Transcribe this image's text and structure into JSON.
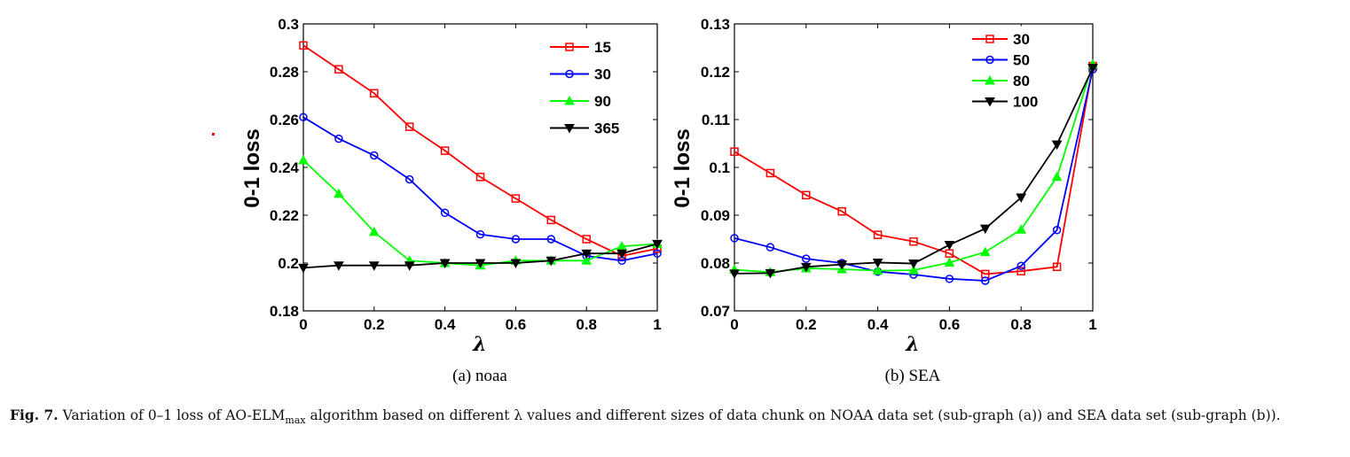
{
  "chart_data": [
    {
      "type": "line",
      "subtitle": "(a) noaa",
      "xlabel": "λ",
      "ylabel": "0-1 loss",
      "xlim": [
        0,
        1
      ],
      "ylim": [
        0.18,
        0.3
      ],
      "xticks": [
        0,
        0.2,
        0.4,
        0.6,
        0.8,
        1
      ],
      "xtick_labels": [
        "0",
        "0.2",
        "0.4",
        "0.6",
        "0.8",
        "1"
      ],
      "yticks": [
        0.18,
        0.2,
        0.22,
        0.24,
        0.26,
        0.28,
        0.3
      ],
      "ytick_labels": [
        "0.18",
        "0.2",
        "0.22",
        "0.24",
        "0.26",
        "0.28",
        "0.3"
      ],
      "legend_position": "top-right",
      "grid": false,
      "x": [
        0,
        0.1,
        0.2,
        0.3,
        0.4,
        0.5,
        0.6,
        0.7,
        0.8,
        0.9,
        1
      ],
      "series": [
        {
          "name": "15",
          "color": "#ff0000",
          "marker": "square",
          "values": [
            0.291,
            0.281,
            0.271,
            0.257,
            0.247,
            0.236,
            0.227,
            0.218,
            0.21,
            0.203,
            0.206
          ]
        },
        {
          "name": "30",
          "color": "#0000ff",
          "marker": "circle",
          "values": [
            0.261,
            0.252,
            0.245,
            0.235,
            0.221,
            0.212,
            0.21,
            0.21,
            0.203,
            0.201,
            0.204
          ]
        },
        {
          "name": "90",
          "color": "#00ff00",
          "marker": "triangle-up",
          "values": [
            0.243,
            0.229,
            0.213,
            0.201,
            0.2,
            0.199,
            0.201,
            0.201,
            0.201,
            0.207,
            0.208
          ]
        },
        {
          "name": "365",
          "color": "#000000",
          "marker": "triangle-down",
          "values": [
            0.198,
            0.199,
            0.199,
            0.199,
            0.2,
            0.2,
            0.2,
            0.201,
            0.204,
            0.204,
            0.208
          ]
        }
      ]
    },
    {
      "type": "line",
      "subtitle": "(b) SEA",
      "xlabel": "λ",
      "ylabel": "0-1 loss",
      "xlim": [
        0,
        1
      ],
      "ylim": [
        0.07,
        0.13
      ],
      "xticks": [
        0,
        0.2,
        0.4,
        0.6,
        0.8,
        1
      ],
      "xtick_labels": [
        "0",
        "0.2",
        "0.4",
        "0.6",
        "0.8",
        "1"
      ],
      "yticks": [
        0.07,
        0.08,
        0.09,
        0.1,
        0.11,
        0.12,
        0.13
      ],
      "ytick_labels": [
        "0.07",
        "0.08",
        "0.09",
        "0.1",
        "0.11",
        "0.12",
        "0.13"
      ],
      "legend_position": "top-left",
      "grid": false,
      "x": [
        0,
        0.1,
        0.2,
        0.3,
        0.4,
        0.5,
        0.6,
        0.7,
        0.8,
        0.9,
        1
      ],
      "series": [
        {
          "name": "30",
          "color": "#ff0000",
          "marker": "square",
          "values": [
            0.1033,
            0.0988,
            0.0942,
            0.0908,
            0.0859,
            0.0845,
            0.082,
            0.0777,
            0.0783,
            0.0792,
            0.1212
          ]
        },
        {
          "name": "50",
          "color": "#0000ff",
          "marker": "circle",
          "values": [
            0.0852,
            0.0833,
            0.0809,
            0.08,
            0.0782,
            0.0776,
            0.0767,
            0.0763,
            0.0794,
            0.0869,
            0.1205
          ]
        },
        {
          "name": "80",
          "color": "#00ff00",
          "marker": "triangle-up",
          "values": [
            0.0786,
            0.0781,
            0.0789,
            0.0787,
            0.0784,
            0.0785,
            0.0801,
            0.0823,
            0.087,
            0.098,
            0.1215
          ]
        },
        {
          "name": "100",
          "color": "#000000",
          "marker": "triangle-down",
          "values": [
            0.0778,
            0.0779,
            0.0792,
            0.0797,
            0.0801,
            0.0799,
            0.0838,
            0.0872,
            0.0937,
            0.1048,
            0.1208
          ]
        }
      ]
    }
  ],
  "caption": {
    "label": "Fig. 7.",
    "text_before_sub": " Variation of 0–1 loss of AO-ELM",
    "sub": "max",
    "text_after_sub": " algorithm based on different λ values and different sizes of data chunk on NOAA data set (sub-graph (a)) and SEA data set (sub-graph (b))."
  }
}
